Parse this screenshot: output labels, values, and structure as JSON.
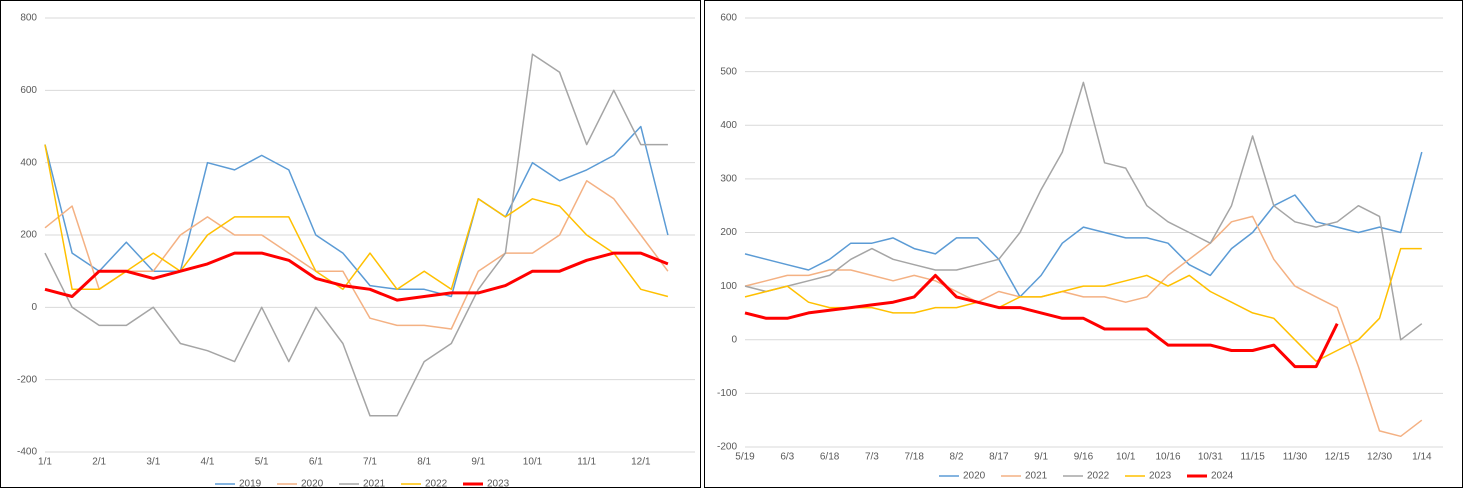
{
  "chart_data": [
    {
      "type": "line",
      "categories": [
        "1/1",
        null,
        "2/1",
        null,
        "3/1",
        null,
        "4/1",
        null,
        "5/1",
        null,
        "6/1",
        null,
        "7/1",
        null,
        "8/1",
        null,
        "9/1",
        null,
        "10/1",
        null,
        "11/1",
        null,
        "12/1",
        null
      ],
      "series": [
        {
          "name": "2019",
          "color": "#5b9bd5",
          "linewidth": 1.5,
          "values": [
            450,
            150,
            100,
            180,
            100,
            100,
            400,
            380,
            420,
            380,
            200,
            150,
            60,
            50,
            50,
            30,
            300,
            250,
            400,
            350,
            380,
            420,
            500,
            200
          ]
        },
        {
          "name": "2020",
          "color": "#f4b183",
          "linewidth": 1.5,
          "values": [
            220,
            280,
            50,
            100,
            100,
            200,
            250,
            200,
            200,
            150,
            100,
            100,
            -30,
            -50,
            -50,
            -60,
            100,
            150,
            150,
            200,
            350,
            300,
            200,
            100
          ]
        },
        {
          "name": "2021",
          "color": "#a5a5a5",
          "linewidth": 1.5,
          "values": [
            150,
            0,
            -50,
            -50,
            0,
            -100,
            -120,
            -150,
            0,
            -150,
            0,
            -100,
            -300,
            -300,
            -150,
            -100,
            50,
            150,
            700,
            650,
            450,
            600,
            450,
            450
          ]
        },
        {
          "name": "2022",
          "color": "#ffc000",
          "linewidth": 1.5,
          "values": [
            450,
            50,
            50,
            100,
            150,
            100,
            200,
            250,
            250,
            250,
            100,
            50,
            150,
            50,
            100,
            50,
            300,
            250,
            300,
            280,
            200,
            150,
            50,
            30
          ]
        },
        {
          "name": "2023",
          "color": "#ff0000",
          "linewidth": 3,
          "values": [
            50,
            30,
            100,
            100,
            80,
            100,
            120,
            150,
            150,
            130,
            80,
            60,
            50,
            20,
            30,
            40,
            40,
            60,
            100,
            100,
            130,
            150,
            150,
            120
          ]
        }
      ],
      "ylim": [
        -400,
        800
      ],
      "yticks": [
        -400,
        -200,
        0,
        200,
        400,
        600,
        800
      ],
      "grid": true,
      "legend": "bottom"
    },
    {
      "type": "line",
      "categories": [
        "5/19",
        null,
        "6/3",
        null,
        "6/18",
        null,
        "7/3",
        null,
        "7/18",
        null,
        "8/2",
        null,
        "8/17",
        null,
        "9/1",
        null,
        "9/16",
        null,
        "10/1",
        null,
        "10/16",
        null,
        "10/31",
        null,
        "11/15",
        null,
        "11/30",
        null,
        "12/15",
        null,
        "12/30",
        null,
        "1/14"
      ],
      "series": [
        {
          "name": "2020",
          "color": "#5b9bd5",
          "linewidth": 1.5,
          "values": [
            160,
            150,
            140,
            130,
            150,
            180,
            180,
            190,
            170,
            160,
            190,
            190,
            150,
            80,
            120,
            180,
            210,
            200,
            190,
            190,
            180,
            140,
            120,
            170,
            200,
            250,
            270,
            220,
            210,
            200,
            210,
            200,
            350
          ]
        },
        {
          "name": "2021",
          "color": "#f4b183",
          "linewidth": 1.5,
          "values": [
            100,
            110,
            120,
            120,
            130,
            130,
            120,
            110,
            120,
            110,
            90,
            70,
            90,
            80,
            80,
            90,
            80,
            80,
            70,
            80,
            120,
            150,
            180,
            220,
            230,
            150,
            100,
            80,
            60,
            -50,
            -170,
            -180,
            -150
          ]
        },
        {
          "name": "2022",
          "color": "#a5a5a5",
          "linewidth": 1.5,
          "values": [
            100,
            90,
            100,
            110,
            120,
            150,
            170,
            150,
            140,
            130,
            130,
            140,
            150,
            200,
            280,
            350,
            480,
            330,
            320,
            250,
            220,
            200,
            180,
            250,
            380,
            250,
            220,
            210,
            220,
            250,
            230,
            0,
            30
          ]
        },
        {
          "name": "2023",
          "color": "#ffc000",
          "linewidth": 1.5,
          "values": [
            80,
            90,
            100,
            70,
            60,
            60,
            60,
            50,
            50,
            60,
            60,
            70,
            60,
            80,
            80,
            90,
            100,
            100,
            110,
            120,
            100,
            120,
            90,
            70,
            50,
            40,
            0,
            -40,
            -20,
            0,
            40,
            170,
            170
          ]
        },
        {
          "name": "2024",
          "color": "#ff0000",
          "linewidth": 3,
          "values": [
            50,
            40,
            40,
            50,
            55,
            60,
            65,
            70,
            80,
            120,
            80,
            70,
            60,
            60,
            50,
            40,
            40,
            20,
            20,
            20,
            -10,
            -10,
            -10,
            -20,
            -20,
            -10,
            -50,
            -50,
            30,
            null,
            null,
            null,
            null
          ]
        }
      ],
      "ylim": [
        -200,
        600
      ],
      "yticks": [
        -200,
        -100,
        0,
        100,
        200,
        300,
        400,
        500,
        600
      ],
      "grid": true,
      "legend": "bottom"
    }
  ]
}
